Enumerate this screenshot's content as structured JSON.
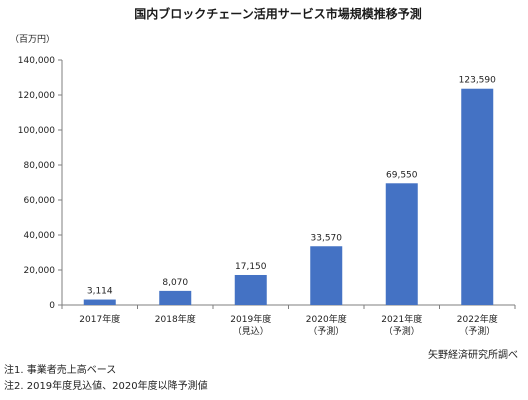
{
  "chart_data": {
    "type": "bar",
    "title": "国内ブロックチェーン活用サービス市場規模推移予測",
    "unit_label": "（百万円）",
    "categories": [
      [
        "2017年度"
      ],
      [
        "2018年度"
      ],
      [
        "2019年度",
        "（見込）"
      ],
      [
        "2020年度",
        "（予測）"
      ],
      [
        "2021年度",
        "（予測）"
      ],
      [
        "2022年度",
        "（予測）"
      ]
    ],
    "values": [
      3114,
      8070,
      17150,
      33570,
      69550,
      123590
    ],
    "value_labels": [
      "3,114",
      "8,070",
      "17,150",
      "33,570",
      "69,550",
      "123,590"
    ],
    "ylim": [
      0,
      140000
    ],
    "yticks": [
      0,
      20000,
      40000,
      60000,
      80000,
      100000,
      120000,
      140000
    ],
    "ytick_labels": [
      "0",
      "20,000",
      "40,000",
      "60,000",
      "80,000",
      "100,000",
      "120,000",
      "140,000"
    ],
    "bar_color": "#4472c4",
    "grid": false,
    "legend": "none"
  },
  "source": "矢野経済研究所調べ",
  "notes": [
    "注1. 事業者売上高ベース",
    "注2. 2019年度見込値、2020年度以降予測値"
  ]
}
